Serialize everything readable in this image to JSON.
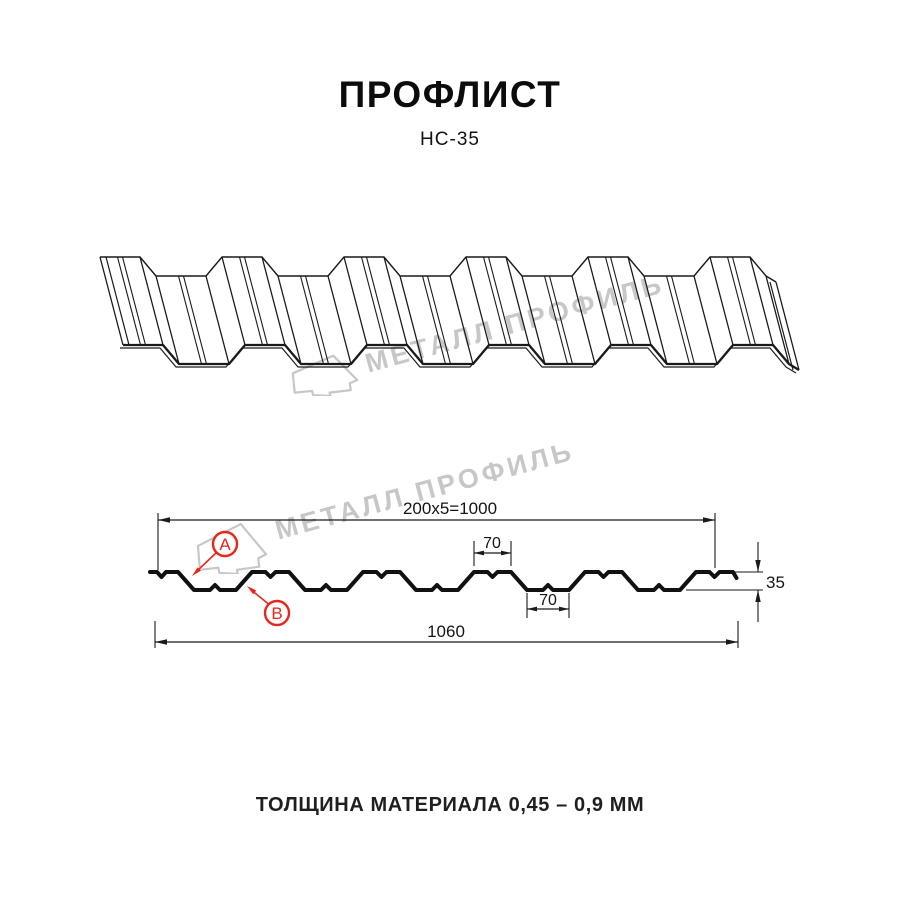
{
  "header": {
    "title": "ПРОФЛИСТ",
    "subtitle": "НС-35"
  },
  "watermark": {
    "text": "МЕТАЛЛ ПРОФИЛЬ",
    "color": "#c7c7c7",
    "logo_icon": "metall-profil-logo"
  },
  "drawing3d": {
    "name": "profile-sheet-3d-view"
  },
  "section": {
    "dims": {
      "width_modules": "200x5=1000",
      "crest_width": "70",
      "valley_width": "70",
      "height": "35",
      "full_width": "1060"
    },
    "callouts": {
      "a": "A",
      "b": "B"
    },
    "colors": {
      "callout_red": "#e8251d",
      "line": "#1a1a1a"
    }
  },
  "footer": {
    "note": "ТОЛЩИНА МАТЕРИАЛА 0,45 – 0,9 ММ"
  }
}
